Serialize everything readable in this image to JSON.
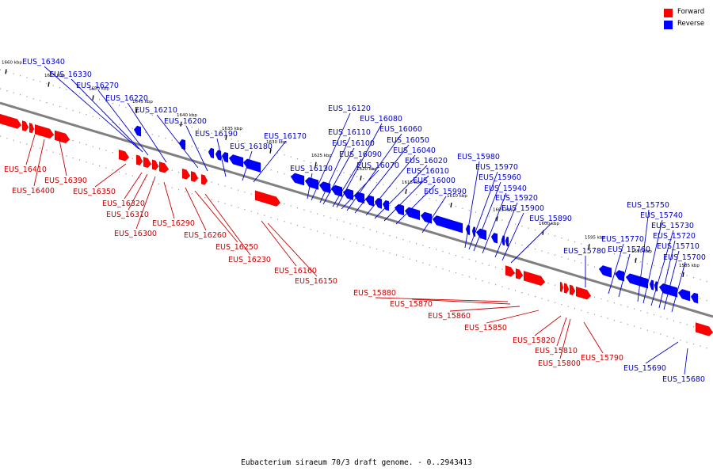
{
  "legend": {
    "forward": {
      "label": "Forward",
      "color": "#ff0000"
    },
    "reverse": {
      "label": "Reverse",
      "color": "#0000ff"
    }
  },
  "caption": "Eubacterium siraeum 70/3 draft genome. - 0..2943413",
  "colors": {
    "forward": "#ff0000",
    "reverse": "#0000ff",
    "forward_label": "#cc0000",
    "reverse_label": "#0000cc",
    "backbone": "#808080",
    "tick": "#000000"
  },
  "scale": {
    "unit": "kbp",
    "ticks": [
      {
        "label": "1660 kbp"
      },
      {
        "label": "1655 kbp"
      },
      {
        "label": "1650 kbp"
      },
      {
        "label": "1645 kbp"
      },
      {
        "label": "1640 kbp"
      },
      {
        "label": "1635 kbp"
      },
      {
        "label": "1630 kbp"
      },
      {
        "label": "1625 kbp"
      },
      {
        "label": "1620 kbp"
      },
      {
        "label": "1615 kbp"
      },
      {
        "label": "1610 kbp"
      },
      {
        "label": "1605 kbp"
      },
      {
        "label": "1600 kbp"
      },
      {
        "label": "1595 kbp"
      },
      {
        "label": "1590 kbp"
      },
      {
        "label": "1585 kbp"
      }
    ]
  },
  "features": {
    "reverse": [
      "EUS_16340",
      "EUS_16330",
      "EUS_16270",
      "EUS_16220",
      "EUS_16210",
      "EUS_16200",
      "EUS_16190",
      "EUS_16180",
      "EUS_16170",
      "EUS_16130",
      "EUS_16120",
      "EUS_16110",
      "EUS_16100",
      "EUS_16090",
      "EUS_16080",
      "EUS_16070",
      "EUS_16060",
      "EUS_16050",
      "EUS_16040",
      "EUS_16020",
      "EUS_16010",
      "EUS_16000",
      "EUS_15990",
      "EUS_15980",
      "EUS_15970",
      "EUS_15960",
      "EUS_15940",
      "EUS_15920",
      "EUS_15900",
      "EUS_15890",
      "EUS_15780",
      "EUS_15770",
      "EUS_15760",
      "EUS_15750",
      "EUS_15740",
      "EUS_15730",
      "EUS_15720",
      "EUS_15710",
      "EUS_15700",
      "EUS_15690",
      "EUS_15680"
    ],
    "forward": [
      "EUS_16410",
      "EUS_16390",
      "EUS_16400",
      "EUS_16350",
      "EUS_16320",
      "EUS_16310",
      "EUS_16300",
      "EUS_16290",
      "EUS_16260",
      "EUS_16250",
      "EUS_16230",
      "EUS_16160",
      "EUS_16150",
      "EUS_15880",
      "EUS_15870",
      "EUS_15860",
      "EUS_15850",
      "EUS_15820",
      "EUS_15810",
      "EUS_15800",
      "EUS_15790"
    ]
  }
}
